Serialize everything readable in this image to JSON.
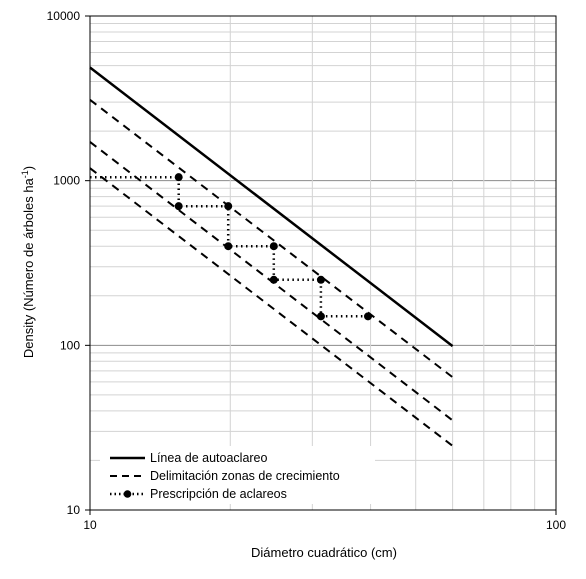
{
  "chart_data": {
    "type": "line",
    "x_scale": "log",
    "y_scale": "log",
    "xlim": [
      10,
      100
    ],
    "ylim": [
      10,
      10000
    ],
    "xlabel": "Diámetro cuadrático (cm)",
    "ylabel_main": "Density (Número  de árboles ha",
    "ylabel_sup": "-1",
    "ylabel_close": ")",
    "x_ticks": [
      {
        "value": 10,
        "label": "10"
      },
      {
        "value": 100,
        "label": "100"
      }
    ],
    "y_ticks": [
      {
        "value": 10,
        "label": "10"
      },
      {
        "value": 100,
        "label": "100"
      },
      {
        "value": 1000,
        "label": "1000"
      },
      {
        "value": 10000,
        "label": "10000"
      }
    ],
    "grid": true,
    "legend_placement": "bottom-left",
    "series": [
      {
        "name": "Línea de autoaclareo",
        "style": "solid",
        "x": [
          10,
          60
        ],
        "y": [
          4870,
          99
        ]
      },
      {
        "name": "Delimitación zonas de crecimiento",
        "style": "dashed",
        "x": [
          10,
          60
        ],
        "y": [
          3100,
          64
        ]
      },
      {
        "name": "",
        "style": "dashed",
        "x": [
          10,
          60
        ],
        "y": [
          1720,
          35
        ]
      },
      {
        "name": "",
        "style": "dashed",
        "x": [
          10,
          60
        ],
        "y": [
          1190,
          24.5
        ]
      },
      {
        "name": "Prescripción de aclareos",
        "style": "dotted-markers",
        "x": [
          10,
          15.5,
          15.5,
          19.8,
          19.8,
          24.8,
          24.8,
          31.3,
          31.3,
          39.5
        ],
        "y": [
          1050,
          1050,
          700,
          700,
          400,
          400,
          250,
          250,
          150,
          150
        ]
      }
    ],
    "markers": {
      "x": [
        15.5,
        15.5,
        19.8,
        19.8,
        24.8,
        24.8,
        31.3,
        31.3,
        39.5
      ],
      "y": [
        1050,
        700,
        700,
        400,
        400,
        250,
        250,
        150,
        150
      ]
    }
  }
}
